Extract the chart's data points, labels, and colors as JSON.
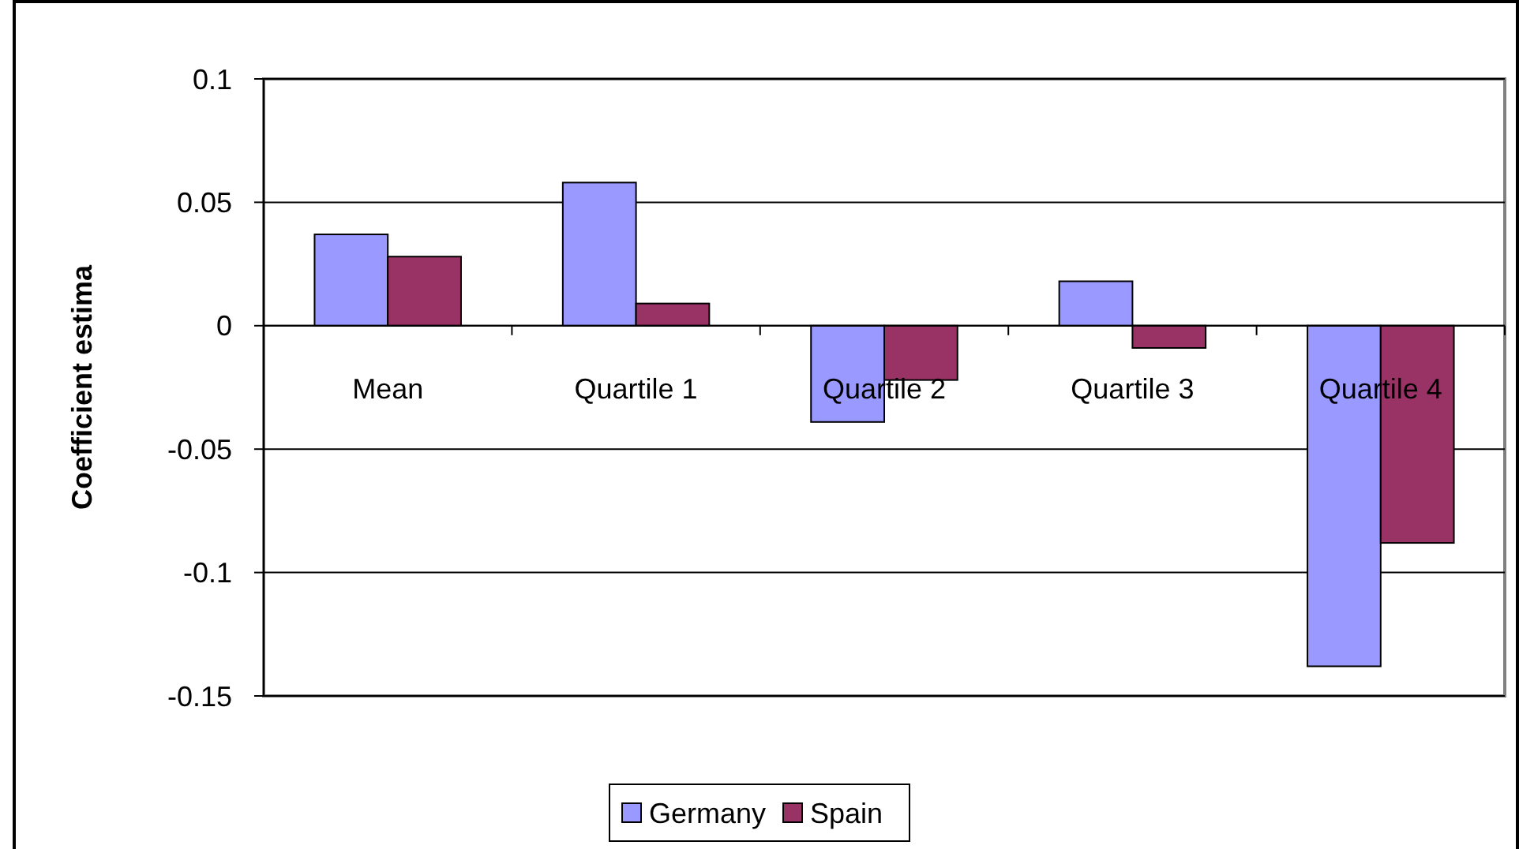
{
  "chart_data": {
    "type": "bar",
    "ylabel": "Coefficient estima",
    "categories": [
      "Mean",
      "Quartile 1",
      "Quartile 2",
      "Quartile 3",
      "Quartile 4"
    ],
    "series": [
      {
        "name": "Germany",
        "color": "#9999ff",
        "values": [
          0.037,
          0.058,
          -0.039,
          0.018,
          -0.138
        ]
      },
      {
        "name": "Spain",
        "color": "#993366",
        "values": [
          0.028,
          0.009,
          -0.022,
          -0.009,
          -0.088
        ]
      }
    ],
    "ylim": [
      -0.15,
      0.1
    ],
    "yticks": [
      -0.15,
      -0.1,
      -0.05,
      0,
      0.05,
      0.1
    ],
    "grid": "y",
    "legend": "bottom"
  }
}
